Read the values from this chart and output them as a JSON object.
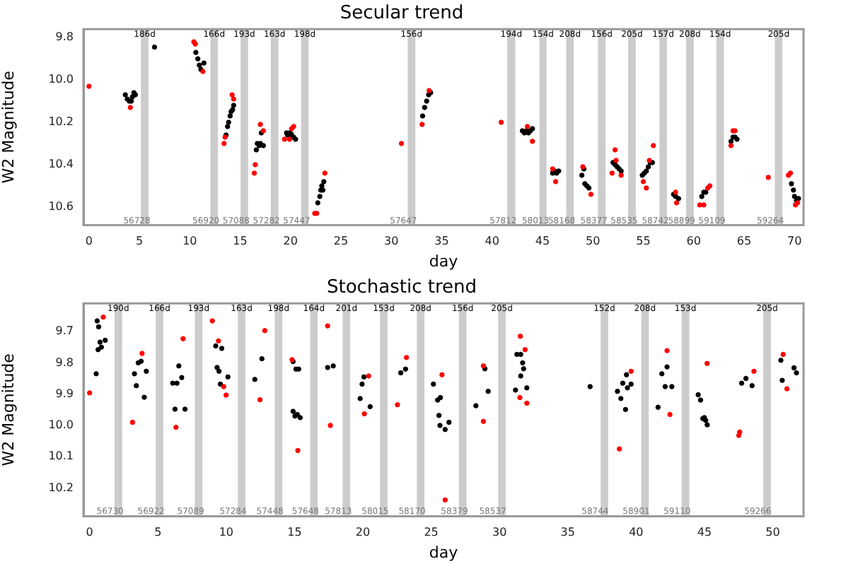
{
  "chart_data": [
    {
      "type": "scatter",
      "title": "Secular trend",
      "xlabel": "day",
      "ylabel": "W2 Magnitude",
      "marker": "circle",
      "legend": false,
      "grid": false,
      "xlim": [
        -0.55,
        70.9
      ],
      "xticks": [
        0,
        5,
        10,
        15,
        20,
        25,
        30,
        35,
        40,
        45,
        50,
        55,
        60,
        65,
        70
      ],
      "ylim": [
        10.685,
        9.76
      ],
      "yticks": [
        9.8,
        {
          "value": 10,
          "label": "10.0"
        },
        10.2,
        10.4,
        10.6
      ],
      "bands": [
        {
          "axis": "x",
          "from": 5.15,
          "to": 5.9,
          "label": "186d",
          "color": "#cccccc"
        },
        {
          "axis": "x",
          "from": 12.04,
          "to": 12.79,
          "label": "166d",
          "color": "#cccccc"
        },
        {
          "axis": "x",
          "from": 15.04,
          "to": 15.79,
          "label": "193d",
          "color": "#cccccc"
        },
        {
          "axis": "x",
          "from": 18.04,
          "to": 18.79,
          "label": "163d",
          "color": "#cccccc"
        },
        {
          "axis": "x",
          "from": 21.04,
          "to": 21.79,
          "label": "198d",
          "color": "#cccccc"
        },
        {
          "axis": "x",
          "from": 31.63,
          "to": 32.38,
          "label": "156d",
          "color": "#cccccc"
        },
        {
          "axis": "x",
          "from": 41.5,
          "to": 42.3,
          "label": "194d",
          "color": "#cccccc"
        },
        {
          "axis": "x",
          "from": 44.7,
          "to": 45.4,
          "label": "154d",
          "color": "#cccccc"
        },
        {
          "axis": "x",
          "from": 47.35,
          "to": 48.1,
          "label": "208d",
          "color": "#cccccc"
        },
        {
          "axis": "x",
          "from": 50.5,
          "to": 51.25,
          "label": "156d",
          "color": "#cccccc"
        },
        {
          "axis": "x",
          "from": 53.5,
          "to": 54.25,
          "label": "205d",
          "color": "#cccccc"
        },
        {
          "axis": "x",
          "from": 56.6,
          "to": 57.35,
          "label": "157d",
          "color": "#cccccc"
        },
        {
          "axis": "x",
          "from": 59.25,
          "to": 60.0,
          "label": "208d",
          "color": "#cccccc"
        },
        {
          "axis": "x",
          "from": 62.25,
          "to": 63.0,
          "label": "154d",
          "color": "#cccccc"
        },
        {
          "axis": "x",
          "from": 68.05,
          "to": 68.8,
          "label": "205d",
          "color": "#cccccc"
        }
      ],
      "annotations": [
        {
          "text": "56728",
          "x": 4.75,
          "y": 10.665
        },
        {
          "text": "56920",
          "x": 11.6,
          "y": 10.665
        },
        {
          "text": "57088",
          "x": 14.6,
          "y": 10.665
        },
        {
          "text": "57282",
          "x": 17.6,
          "y": 10.665
        },
        {
          "text": "57447",
          "x": 20.6,
          "y": 10.665
        },
        {
          "text": "57647",
          "x": 31.2,
          "y": 10.665
        },
        {
          "text": "57812",
          "x": 41.1,
          "y": 10.665
        },
        {
          "text": "58013",
          "x": 44.3,
          "y": 10.665
        },
        {
          "text": "58168",
          "x": 46.9,
          "y": 10.665
        },
        {
          "text": "58377",
          "x": 50.1,
          "y": 10.665
        },
        {
          "text": "58535",
          "x": 53.1,
          "y": 10.665
        },
        {
          "text": "58742",
          "x": 56.2,
          "y": 10.665
        },
        {
          "text": "58899",
          "x": 58.8,
          "y": 10.665
        },
        {
          "text": "59109",
          "x": 61.8,
          "y": 10.665
        },
        {
          "text": "59264",
          "x": 67.6,
          "y": 10.665
        }
      ],
      "series": [
        {
          "color": "#000000",
          "x": [
            3.6,
            3.8,
            4.0,
            4.2,
            4.3,
            4.45,
            4.6,
            6.5,
            10.6,
            10.8,
            10.95,
            11.1,
            11.4,
            13.6,
            13.75,
            13.85,
            14.0,
            14.1,
            14.25,
            14.35,
            16.6,
            16.7,
            16.9,
            17.0,
            17.1,
            17.3,
            19.6,
            19.7,
            19.9,
            20.05,
            20.1,
            20.3,
            20.5,
            22.7,
            22.9,
            23.0,
            23.1,
            23.2,
            23.3,
            33.1,
            33.3,
            33.5,
            33.7,
            33.9,
            43.0,
            43.2,
            43.4,
            43.6,
            43.8,
            44.0,
            46.0,
            46.2,
            46.4,
            46.6,
            48.9,
            49.1,
            49.2,
            49.4,
            49.6,
            52.0,
            52.2,
            52.4,
            52.6,
            52.8,
            54.9,
            55.1,
            55.3,
            55.5,
            55.7,
            55.9,
            58.0,
            58.2,
            58.5,
            60.8,
            61.0,
            61.2,
            63.7,
            63.9,
            64.1,
            64.3,
            69.7,
            69.9,
            70.0,
            70.2,
            70.4
          ],
          "values": [
            10.07,
            10.09,
            10.1,
            10.1,
            10.08,
            10.06,
            10.07,
            9.845,
            9.87,
            9.9,
            9.93,
            9.95,
            9.92,
            10.26,
            10.22,
            10.2,
            10.17,
            10.15,
            10.14,
            10.12,
            10.33,
            10.3,
            10.31,
            10.3,
            10.25,
            10.31,
            10.25,
            10.26,
            10.25,
            10.255,
            10.26,
            10.27,
            10.28,
            10.58,
            10.55,
            10.52,
            10.5,
            10.52,
            10.48,
            10.17,
            10.13,
            10.1,
            10.07,
            10.06,
            10.24,
            10.25,
            10.24,
            10.25,
            10.24,
            10.23,
            10.44,
            10.43,
            10.44,
            10.43,
            10.45,
            10.42,
            10.49,
            10.5,
            10.51,
            10.39,
            10.4,
            10.41,
            10.42,
            10.43,
            10.45,
            10.44,
            10.43,
            10.41,
            10.39,
            10.39,
            10.54,
            10.55,
            10.56,
            10.55,
            10.53,
            10.53,
            10.29,
            10.27,
            10.27,
            10.28,
            10.49,
            10.52,
            10.55,
            10.57,
            10.56
          ]
        },
        {
          "color": "#ff0000",
          "x": [
            0,
            4.1,
            10.4,
            10.55,
            11.3,
            13.4,
            13.5,
            14.2,
            14.35,
            16.4,
            16.5,
            17.0,
            17.3,
            19.4,
            19.9,
            20.1,
            20.3,
            22.4,
            22.6,
            23.4,
            31.0,
            33.05,
            33.75,
            40.9,
            43.5,
            44.0,
            46.0,
            46.3,
            49.0,
            49.8,
            51.9,
            52.2,
            52.3,
            52.8,
            55.0,
            55.3,
            55.6,
            56.0,
            58.2,
            58.3,
            60.6,
            61.0,
            61.4,
            61.6,
            63.7,
            63.9,
            64.1,
            67.4,
            69.4,
            69.6,
            70.1,
            70.3
          ],
          "values": [
            10.03,
            10.13,
            9.82,
            9.83,
            9.96,
            10.3,
            10.27,
            10.07,
            10.09,
            10.44,
            10.4,
            10.21,
            10.24,
            10.28,
            10.28,
            10.23,
            10.22,
            10.63,
            10.63,
            10.44,
            10.3,
            10.21,
            10.05,
            10.2,
            10.22,
            10.29,
            10.42,
            10.48,
            10.41,
            10.54,
            10.44,
            10.33,
            10.38,
            10.45,
            10.48,
            10.51,
            10.38,
            10.31,
            10.53,
            10.58,
            10.59,
            10.59,
            10.51,
            10.5,
            10.31,
            10.24,
            10.24,
            10.46,
            10.45,
            10.44,
            10.59,
            10.58
          ]
        }
      ]
    },
    {
      "type": "scatter",
      "title": "Stochastic trend",
      "xlabel": "day",
      "ylabel": "W2 Magnitude",
      "marker": "circle",
      "legend": false,
      "grid": false,
      "xlim": [
        -0.45,
        52.25
      ],
      "xticks": [
        0,
        5,
        10,
        15,
        20,
        25,
        30,
        35,
        40,
        45,
        50
      ],
      "ylim": [
        10.29,
        9.61
      ],
      "yticks": [
        9.7,
        9.8,
        9.9,
        {
          "value": 10,
          "label": "10.0"
        },
        10.1,
        10.2
      ],
      "bands": [
        {
          "axis": "x",
          "from": 1.83,
          "to": 2.38,
          "label": "190d",
          "color": "#cccccc"
        },
        {
          "axis": "x",
          "from": 4.84,
          "to": 5.39,
          "label": "166d",
          "color": "#cccccc"
        },
        {
          "axis": "x",
          "from": 7.7,
          "to": 8.26,
          "label": "193d",
          "color": "#cccccc"
        },
        {
          "axis": "x",
          "from": 10.85,
          "to": 11.4,
          "label": "163d",
          "color": "#cccccc"
        },
        {
          "axis": "x",
          "from": 13.55,
          "to": 14.1,
          "label": "198d",
          "color": "#cccccc"
        },
        {
          "axis": "x",
          "from": 16.14,
          "to": 16.69,
          "label": "164d",
          "color": "#cccccc"
        },
        {
          "axis": "x",
          "from": 18.52,
          "to": 19.07,
          "label": "201d",
          "color": "#cccccc"
        },
        {
          "axis": "x",
          "from": 21.25,
          "to": 21.8,
          "label": "153d",
          "color": "#cccccc"
        },
        {
          "axis": "x",
          "from": 23.95,
          "to": 24.5,
          "label": "208d",
          "color": "#cccccc"
        },
        {
          "axis": "x",
          "from": 27.03,
          "to": 27.58,
          "label": "156d",
          "color": "#cccccc"
        },
        {
          "axis": "x",
          "from": 29.9,
          "to": 30.45,
          "label": "205d",
          "color": "#cccccc"
        },
        {
          "axis": "x",
          "from": 37.4,
          "to": 37.95,
          "label": "152d",
          "color": "#cccccc"
        },
        {
          "axis": "x",
          "from": 40.37,
          "to": 40.92,
          "label": "208d",
          "color": "#cccccc"
        },
        {
          "axis": "x",
          "from": 43.33,
          "to": 43.89,
          "label": "153d",
          "color": "#cccccc"
        },
        {
          "axis": "x",
          "from": 49.3,
          "to": 49.86,
          "label": "205d",
          "color": "#cccccc"
        }
      ],
      "annotations": [
        {
          "text": "56730",
          "x": 1.5,
          "y": 10.275
        },
        {
          "text": "56922",
          "x": 4.5,
          "y": 10.275
        },
        {
          "text": "57089",
          "x": 7.4,
          "y": 10.275
        },
        {
          "text": "57284",
          "x": 10.5,
          "y": 10.275
        },
        {
          "text": "57448",
          "x": 13.2,
          "y": 10.275
        },
        {
          "text": "57648",
          "x": 15.8,
          "y": 10.275
        },
        {
          "text": "57813",
          "x": 18.2,
          "y": 10.275
        },
        {
          "text": "58015",
          "x": 20.9,
          "y": 10.275
        },
        {
          "text": "58170",
          "x": 23.6,
          "y": 10.275
        },
        {
          "text": "58379",
          "x": 26.7,
          "y": 10.275
        },
        {
          "text": "58537",
          "x": 29.5,
          "y": 10.275
        },
        {
          "text": "58744",
          "x": 37.0,
          "y": 10.275
        },
        {
          "text": "58901",
          "x": 40.0,
          "y": 10.275
        },
        {
          "text": "59110",
          "x": 43.0,
          "y": 10.275
        },
        {
          "text": "59266",
          "x": 48.9,
          "y": 10.275
        }
      ],
      "series": [
        {
          "color": "#000000",
          "x": [
            0.48,
            0.55,
            0.66,
            0.62,
            0.76,
            0.86,
            1.14,
            3.28,
            3.42,
            3.56,
            3.77,
            4.0,
            4.15,
            6.08,
            6.25,
            6.39,
            6.53,
            6.74,
            6.98,
            9.23,
            9.33,
            9.47,
            9.57,
            9.67,
            10.12,
            12.09,
            12.61,
            14.89,
            14.89,
            15.03,
            15.1,
            15.2,
            15.3,
            15.41,
            17.42,
            17.83,
            19.8,
            19.94,
            20.08,
            20.53,
            22.77,
            23.12,
            25.16,
            25.47,
            25.67,
            25.57,
            25.64,
            26.02,
            26.3,
            28.27,
            28.93,
            29.17,
            31.17,
            31.27,
            31.55,
            31.55,
            31.69,
            31.76,
            32.0,
            36.63,
            38.63,
            38.88,
            39.02,
            39.22,
            39.29,
            39.36,
            39.63,
            41.6,
            41.88,
            42.12,
            42.26,
            42.61,
            44.54,
            44.71,
            44.88,
            44.99,
            45.09,
            45.2,
            47.72,
            48.03,
            48.48,
            50.59,
            50.69,
            51.55,
            51.73
          ],
          "values": [
            9.835,
            9.666,
            9.685,
            9.758,
            9.734,
            9.75,
            9.728,
            9.835,
            9.873,
            9.8,
            9.795,
            9.91,
            9.827,
            9.865,
            9.948,
            9.865,
            9.81,
            9.847,
            9.948,
            9.746,
            9.815,
            9.827,
            9.868,
            9.754,
            9.845,
            9.853,
            9.787,
            9.796,
            9.955,
            9.97,
            9.82,
            9.965,
            9.82,
            9.975,
            9.815,
            9.81,
            9.914,
            9.868,
            9.845,
            9.94,
            9.832,
            9.82,
            9.868,
            9.919,
            9.911,
            9.968,
            10.0,
            10.013,
            9.99,
            9.937,
            9.819,
            9.891,
            9.887,
            9.773,
            9.773,
            9.842,
            9.8,
            9.819,
            9.88,
            9.876,
            9.891,
            9.914,
            9.865,
            9.949,
            9.838,
            9.88,
            9.868,
            9.942,
            9.835,
            9.876,
            9.813,
            9.876,
            9.902,
            9.919,
            9.978,
            9.975,
            9.984,
            9.998,
            9.865,
            9.85,
            9.873,
            9.792,
            9.856,
            9.816,
            9.832
          ]
        },
        {
          "color": "#ff0000",
          "x": [
            0,
            1.0,
            3.14,
            3.84,
            6.32,
            6.84,
            8.98,
            9.43,
            9.81,
            9.99,
            12.47,
            12.82,
            14.82,
            15.24,
            17.42,
            17.62,
            20.11,
            20.42,
            22.53,
            23.19,
            25.79,
            26.02,
            28.82,
            28.82,
            31.52,
            31.49,
            31.87,
            32.0,
            38.77,
            39.63,
            42.26,
            42.47,
            45.19,
            47.51,
            47.58,
            48.62,
            50.76,
            51.03
          ],
          "values": [
            9.896,
            9.654,
            9.99,
            9.77,
            10.006,
            9.723,
            9.666,
            9.73,
            9.876,
            9.903,
            9.918,
            9.697,
            9.79,
            10.08,
            9.682,
            10.0,
            9.963,
            9.842,
            9.934,
            9.783,
            9.838,
            10.238,
            9.81,
            9.987,
            9.715,
            9.911,
            9.758,
            9.929,
            10.075,
            9.827,
            9.761,
            9.965,
            9.802,
            10.032,
            10.021,
            9.827,
            9.773,
            9.883
          ]
        }
      ]
    }
  ]
}
